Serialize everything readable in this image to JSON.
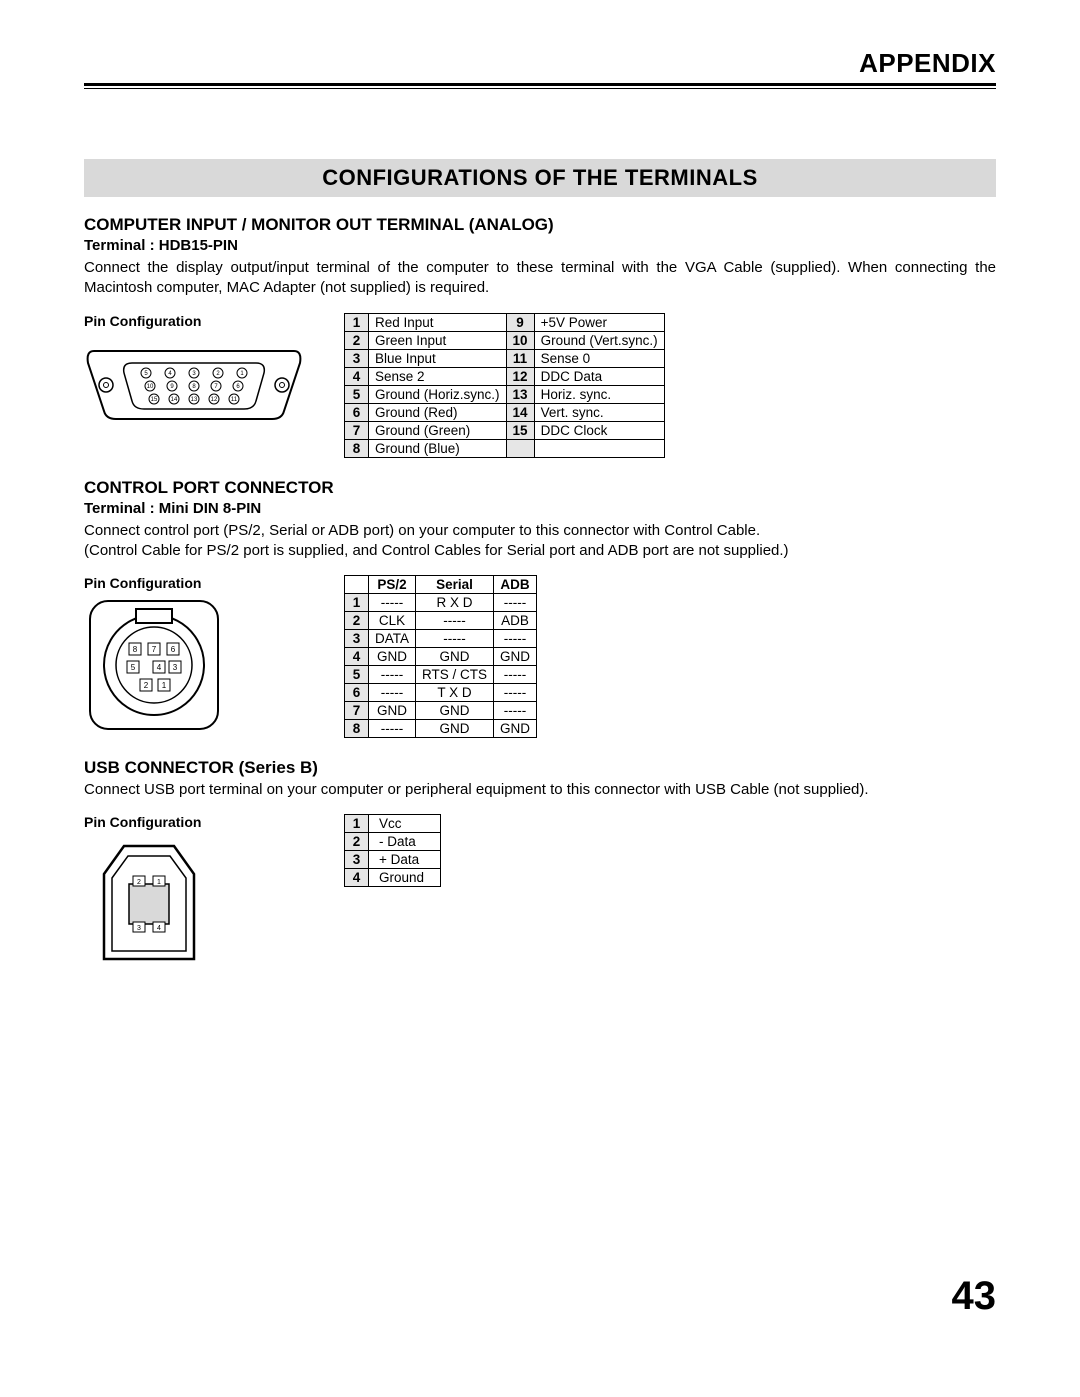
{
  "header": {
    "title": "APPENDIX"
  },
  "sectionBand": "CONFIGURATIONS OF THE TERMINALS",
  "pageNumber": "43",
  "pinCfgLabel": "Pin Configuration",
  "hdb15": {
    "heading": "COMPUTER INPUT / MONITOR OUT TERMINAL (ANALOG)",
    "terminal": "Terminal : HDB15-PIN",
    "paragraph": "Connect the display output/input terminal of the computer to these terminal with the VGA Cable (supplied).  When connecting the Macintosh computer, MAC Adapter (not supplied) is required.",
    "pins": [
      {
        "n": "1",
        "v": "Red Input"
      },
      {
        "n": "2",
        "v": "Green Input"
      },
      {
        "n": "3",
        "v": "Blue Input"
      },
      {
        "n": "4",
        "v": "Sense 2"
      },
      {
        "n": "5",
        "v": "Ground (Horiz.sync.)"
      },
      {
        "n": "6",
        "v": "Ground (Red)"
      },
      {
        "n": "7",
        "v": "Ground (Green)"
      },
      {
        "n": "8",
        "v": "Ground (Blue)"
      },
      {
        "n": "9",
        "v": "+5V Power"
      },
      {
        "n": "10",
        "v": "Ground (Vert.sync.)"
      },
      {
        "n": "11",
        "v": "Sense 0"
      },
      {
        "n": "12",
        "v": "DDC Data"
      },
      {
        "n": "13",
        "v": "Horiz. sync."
      },
      {
        "n": "14",
        "v": "Vert. sync."
      },
      {
        "n": "15",
        "v": "DDC Clock"
      }
    ]
  },
  "din8": {
    "heading": "CONTROL PORT CONNECTOR",
    "terminal": "Terminal : Mini DIN 8-PIN",
    "para1": "Connect control port (PS/2, Serial or ADB port) on your computer to this connector with Control Cable.",
    "para2": "(Control Cable for PS/2 port is supplied, and Control Cables for Serial port and ADB port are not supplied.)",
    "headers": [
      "PS/2",
      "Serial",
      "ADB"
    ],
    "rows": [
      {
        "n": "1",
        "c": [
          "-----",
          "R X D",
          "-----"
        ]
      },
      {
        "n": "2",
        "c": [
          "CLK",
          "-----",
          "ADB"
        ]
      },
      {
        "n": "3",
        "c": [
          "DATA",
          "-----",
          "-----"
        ]
      },
      {
        "n": "4",
        "c": [
          "GND",
          "GND",
          "GND"
        ]
      },
      {
        "n": "5",
        "c": [
          "-----",
          "RTS / CTS",
          "-----"
        ]
      },
      {
        "n": "6",
        "c": [
          "-----",
          "T X D",
          "-----"
        ]
      },
      {
        "n": "7",
        "c": [
          "GND",
          "GND",
          "-----"
        ]
      },
      {
        "n": "8",
        "c": [
          "-----",
          "GND",
          "GND"
        ]
      }
    ]
  },
  "usb": {
    "heading": "USB CONNECTOR (Series B)",
    "paragraph": "Connect USB port terminal on your computer or peripheral equipment to this connector with USB Cable (not supplied).",
    "rows": [
      {
        "n": "1",
        "v": "Vcc"
      },
      {
        "n": "2",
        "v": "- Data"
      },
      {
        "n": "3",
        "v": "+ Data"
      },
      {
        "n": "4",
        "v": "Ground"
      }
    ]
  }
}
